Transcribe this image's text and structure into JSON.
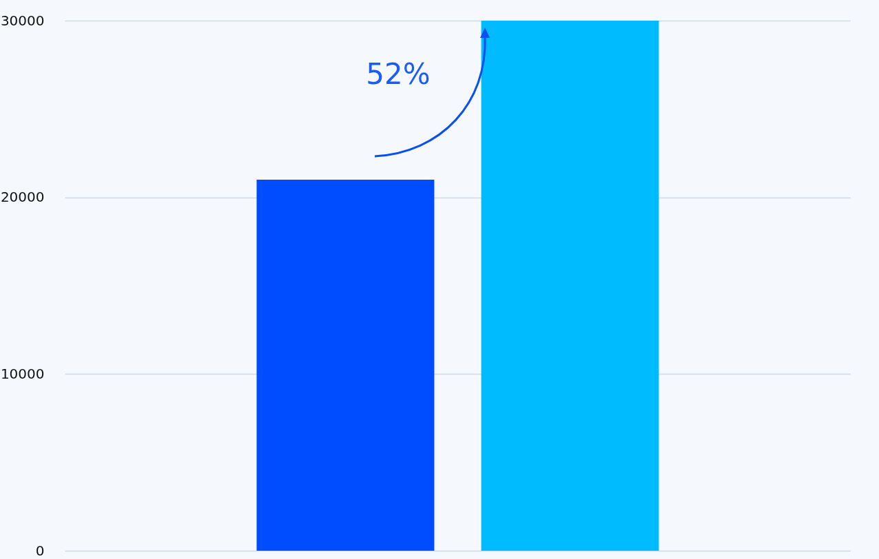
{
  "chart_data": {
    "type": "bar",
    "categories": [
      null
    ],
    "series": [
      {
        "color": "#004dff",
        "values": [
          21000
        ]
      },
      {
        "color": "#00bcff",
        "values": [
          30000
        ]
      }
    ],
    "ylim": [
      0,
      30000
    ],
    "yticks": [
      0,
      10000,
      20000,
      30000
    ],
    "grid": "y",
    "legend": false,
    "tick_labels": "y",
    "annotations": [
      "52%"
    ]
  }
}
